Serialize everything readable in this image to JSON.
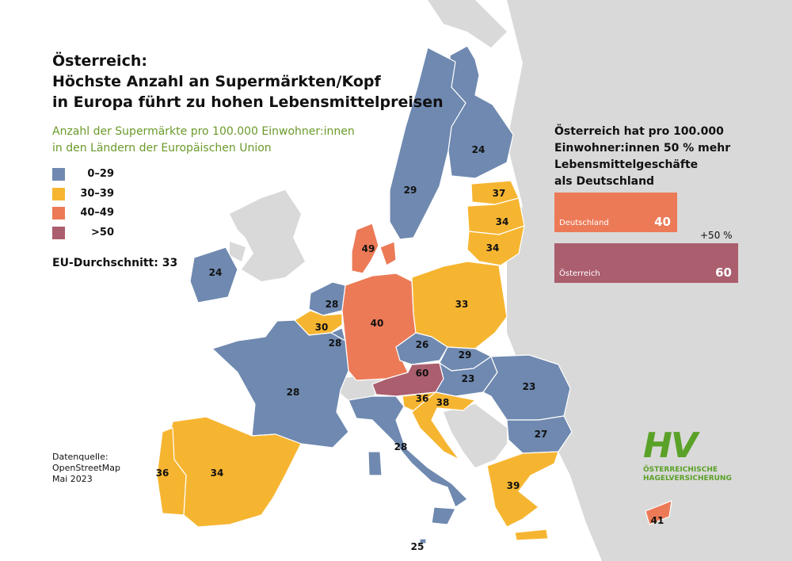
{
  "title": {
    "line1": "Österreich:",
    "line2": "Höchste Anzahl an Supermärkten/Kopf",
    "line3": "in Europa führt zu hohen Lebensmittelpreisen"
  },
  "subtitle": {
    "line1": "Anzahl der Supermärkte pro 100.000 Einwohner:innen",
    "line2": "in den Ländern der Europäischen Union"
  },
  "legend": [
    {
      "label": "0–29",
      "color": "#6f89b0"
    },
    {
      "label": "30–39",
      "color": "#f6b531"
    },
    {
      "label": "40–49",
      "color": "#ec7a57"
    },
    {
      "label": ">50",
      "color": "#ab5e6e"
    }
  ],
  "eu_average": "EU-Durchschnitt: 33",
  "source": {
    "line1": "Datenquelle:",
    "line2": "OpenStreetMap",
    "line3": "Mai 2023"
  },
  "comparison": {
    "title_line1": "Österreich hat pro 100.000",
    "title_line2": "Einwohner:innen 50 % mehr",
    "title_line3": "Lebensmittelgeschäfte",
    "title_line4": "als Deutschland",
    "increase_label": "+50 %",
    "bars": [
      {
        "name": "Deutschland",
        "value": "40",
        "number": 40,
        "color": "#ec7a57"
      },
      {
        "name": "Österreich",
        "value": "60",
        "number": 60,
        "color": "#ab5e6e"
      }
    ]
  },
  "logo": {
    "mark": "HV",
    "line1": "ÖSTERREICHISCHE",
    "line2": "HAGELVERSICHERUNG"
  },
  "colors": {
    "background": "#ffffff",
    "non_eu": "#d9d9d9",
    "border": "#ffffff"
  },
  "countries": [
    {
      "id": "finland",
      "value": "24",
      "band": 0
    },
    {
      "id": "sweden",
      "value": "29",
      "band": 0
    },
    {
      "id": "estonia",
      "value": "37",
      "band": 1
    },
    {
      "id": "latvia",
      "value": "34",
      "band": 1
    },
    {
      "id": "lithuania",
      "value": "34",
      "band": 1
    },
    {
      "id": "denmark",
      "value": "49",
      "band": 2
    },
    {
      "id": "ireland",
      "value": "24",
      "band": 0
    },
    {
      "id": "netherlands",
      "value": "28",
      "band": 0
    },
    {
      "id": "belgium",
      "value": "30",
      "band": 1
    },
    {
      "id": "luxembourg",
      "value": "28",
      "band": 0
    },
    {
      "id": "germany",
      "value": "40",
      "band": 2
    },
    {
      "id": "poland",
      "value": "33",
      "band": 1
    },
    {
      "id": "czechia",
      "value": "26",
      "band": 0
    },
    {
      "id": "slovakia",
      "value": "29",
      "band": 0
    },
    {
      "id": "austria",
      "value": "60",
      "band": 3
    },
    {
      "id": "hungary",
      "value": "23",
      "band": 0
    },
    {
      "id": "romania",
      "value": "23",
      "band": 0
    },
    {
      "id": "slovenia",
      "value": "36",
      "band": 1
    },
    {
      "id": "croatia",
      "value": "38",
      "band": 1
    },
    {
      "id": "bulgaria",
      "value": "27",
      "band": 0
    },
    {
      "id": "france",
      "value": "28",
      "band": 0
    },
    {
      "id": "italy",
      "value": "28",
      "band": 0
    },
    {
      "id": "spain",
      "value": "34",
      "band": 1
    },
    {
      "id": "portugal",
      "value": "36",
      "band": 1
    },
    {
      "id": "greece",
      "value": "39",
      "band": 1
    },
    {
      "id": "malta",
      "value": "25",
      "band": 0
    },
    {
      "id": "cyprus",
      "value": "41",
      "band": 2
    }
  ]
}
